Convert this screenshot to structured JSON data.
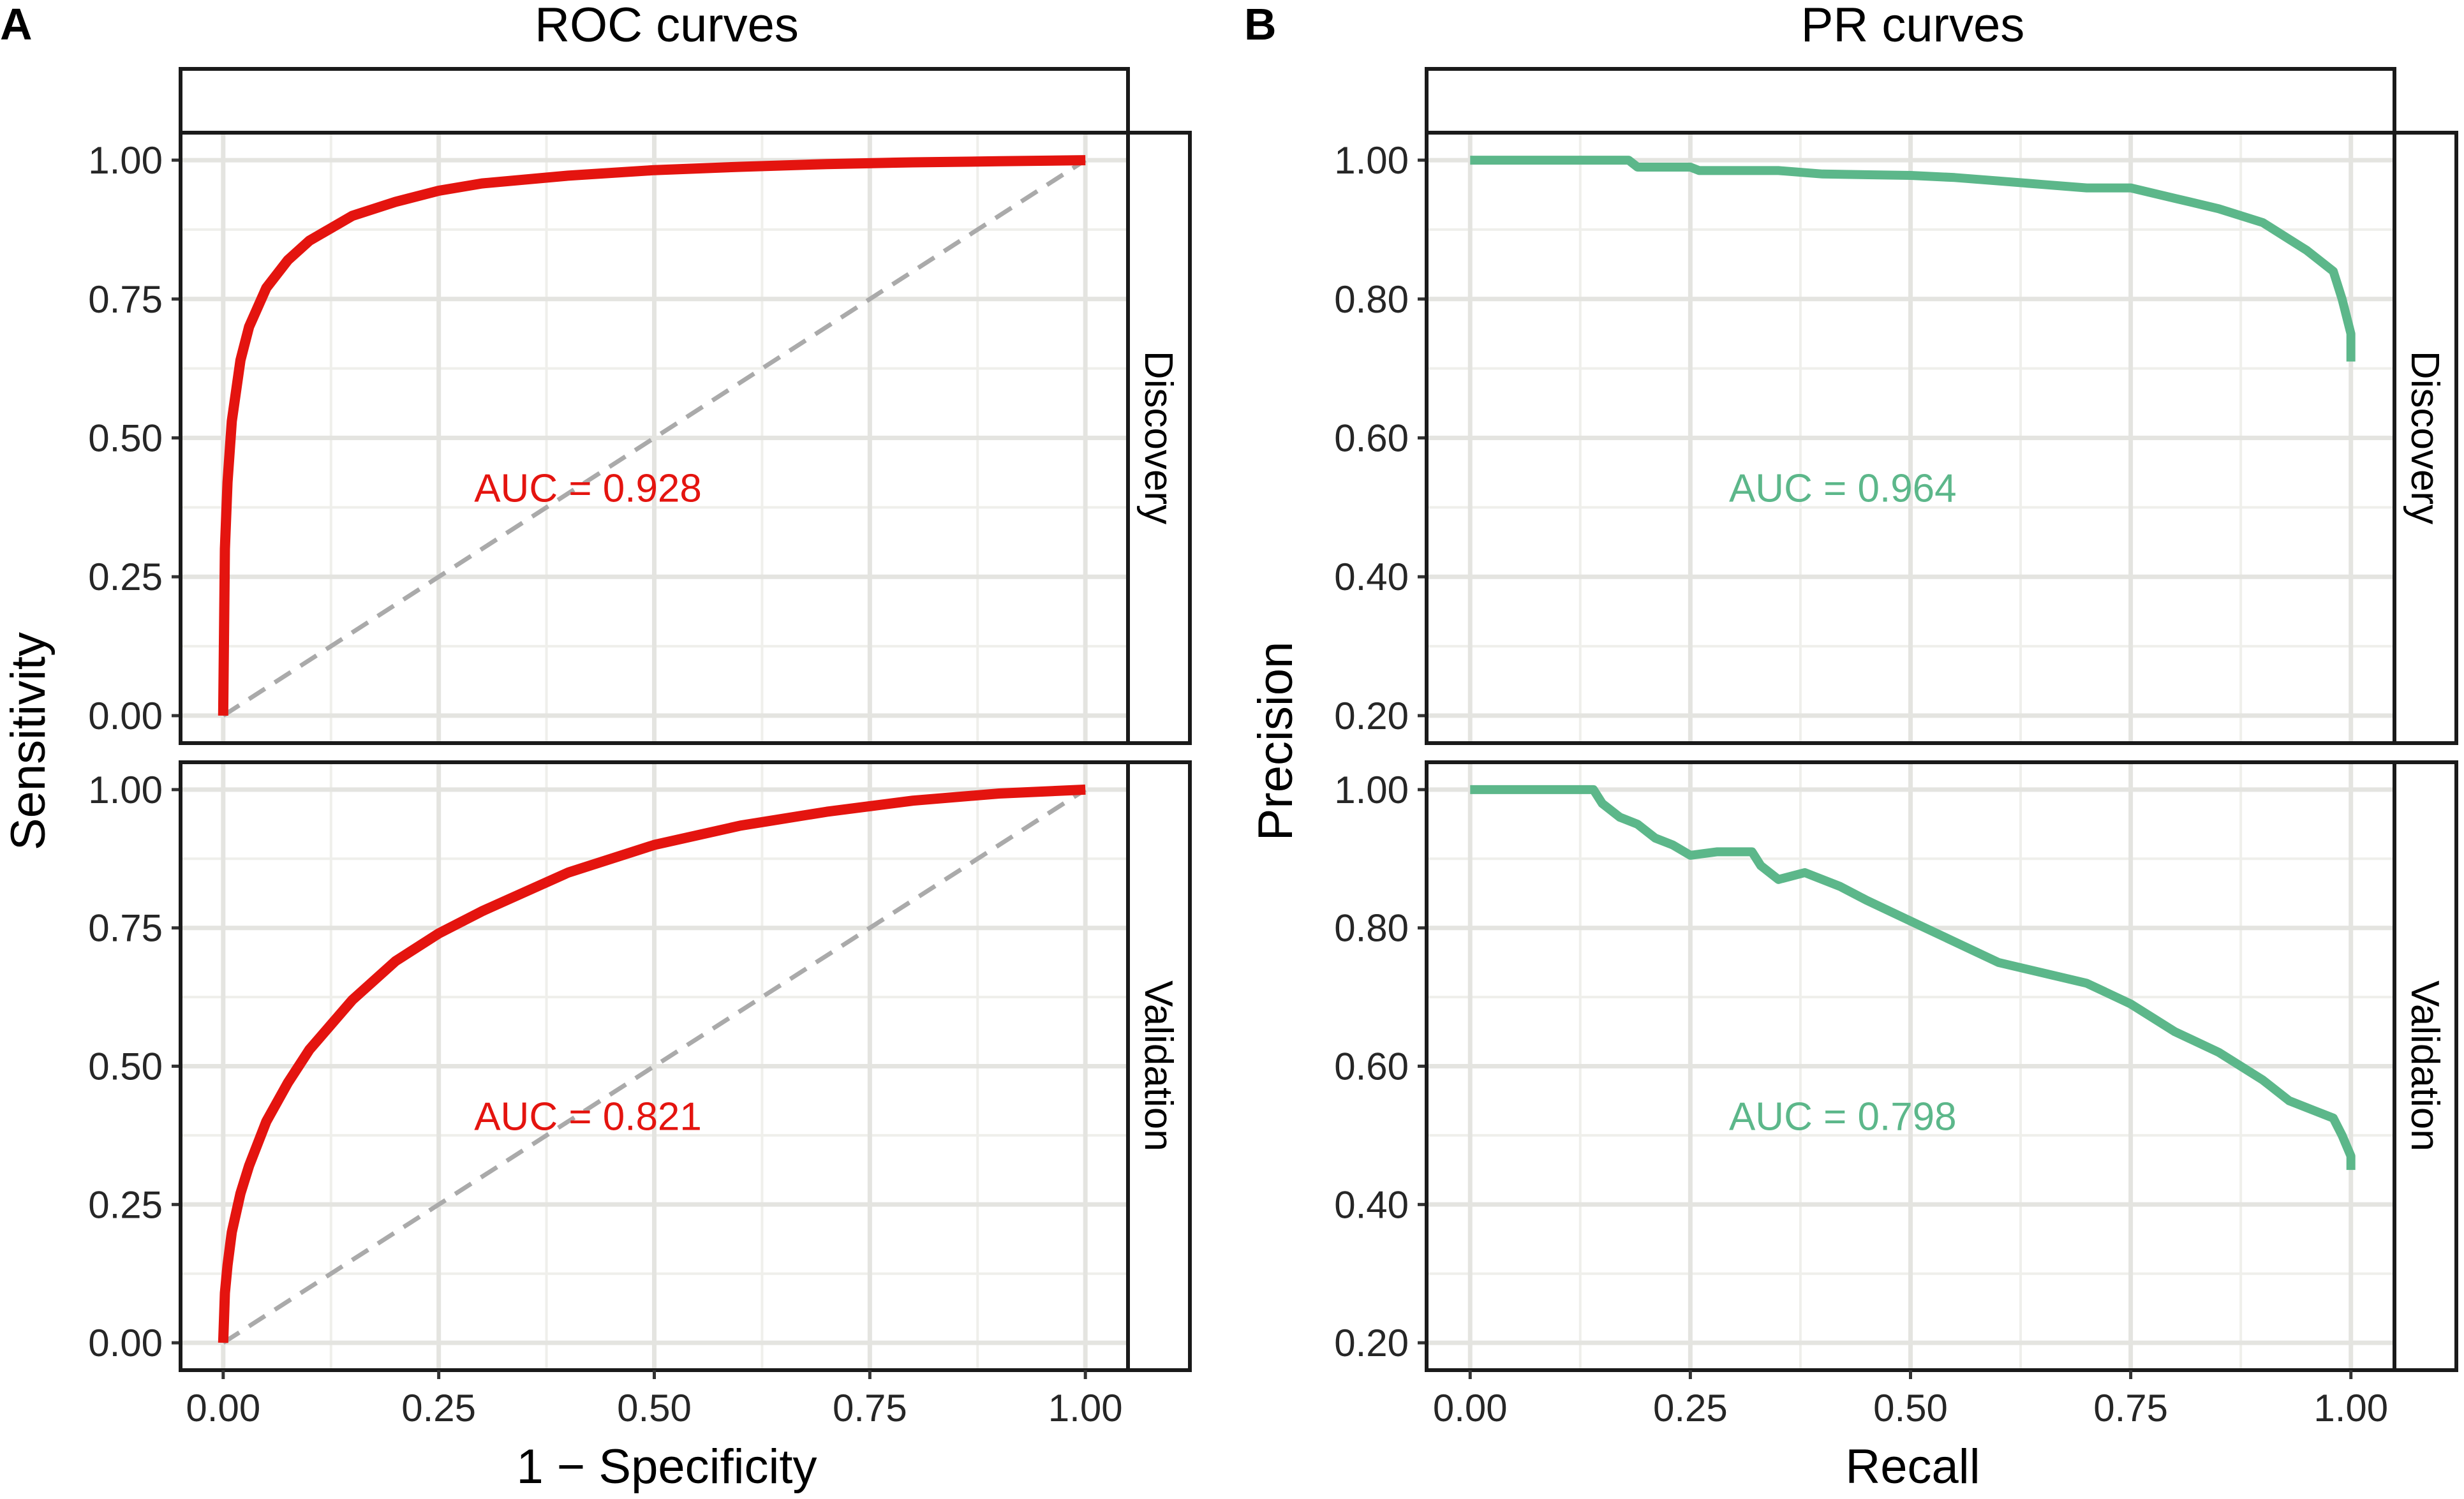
{
  "colors": {
    "roc": "#e4140f",
    "pr": "#5cb78a"
  },
  "chart_data": [
    {
      "panel": "A",
      "type": "line",
      "title": "ROC curves",
      "xlabel": "1 − Specificity",
      "ylabel": "Sensitivity",
      "xlim": [
        0,
        1
      ],
      "ylim": [
        0,
        1
      ],
      "x_ticks": [
        "0.00",
        "0.25",
        "0.50",
        "0.75",
        "1.00"
      ],
      "y_ticks": [
        "0.00",
        "0.25",
        "0.50",
        "0.75",
        "1.00"
      ],
      "facets": [
        {
          "name": "Discovery",
          "auc_label": "AUC = 0.928",
          "series": [
            {
              "name": "ROC",
              "x": [
                0,
                0.002,
                0.005,
                0.01,
                0.02,
                0.03,
                0.05,
                0.075,
                0.1,
                0.15,
                0.2,
                0.25,
                0.3,
                0.4,
                0.5,
                0.6,
                0.7,
                0.8,
                0.9,
                1.0
              ],
              "y": [
                0,
                0.3,
                0.42,
                0.53,
                0.64,
                0.7,
                0.77,
                0.82,
                0.855,
                0.9,
                0.925,
                0.945,
                0.958,
                0.972,
                0.982,
                0.988,
                0.993,
                0.996,
                0.998,
                1.0
              ]
            }
          ],
          "diagonal": [
            [
              0,
              0
            ],
            [
              1,
              1
            ]
          ]
        },
        {
          "name": "Validation",
          "auc_label": "AUC = 0.821",
          "series": [
            {
              "name": "ROC",
              "x": [
                0,
                0.002,
                0.005,
                0.01,
                0.02,
                0.03,
                0.05,
                0.075,
                0.1,
                0.15,
                0.2,
                0.25,
                0.3,
                0.4,
                0.5,
                0.6,
                0.7,
                0.8,
                0.9,
                1.0
              ],
              "y": [
                0,
                0.09,
                0.14,
                0.2,
                0.27,
                0.32,
                0.4,
                0.47,
                0.53,
                0.62,
                0.69,
                0.74,
                0.78,
                0.85,
                0.9,
                0.935,
                0.96,
                0.98,
                0.993,
                1.0
              ]
            }
          ],
          "diagonal": [
            [
              0,
              0
            ],
            [
              1,
              1
            ]
          ]
        }
      ]
    },
    {
      "panel": "B",
      "type": "line",
      "title": "PR curves",
      "xlabel": "Recall",
      "ylabel": "Precision",
      "xlim": [
        0,
        1
      ],
      "ylim": [
        0.2,
        1
      ],
      "x_ticks": [
        "0.00",
        "0.25",
        "0.50",
        "0.75",
        "1.00"
      ],
      "y_ticks": [
        "0.20",
        "0.40",
        "0.60",
        "0.80",
        "1.00"
      ],
      "facets": [
        {
          "name": "Discovery",
          "auc_label": "AUC = 0.964",
          "series": [
            {
              "name": "PR",
              "x": [
                0,
                0.18,
                0.19,
                0.25,
                0.26,
                0.35,
                0.4,
                0.5,
                0.55,
                0.6,
                0.65,
                0.7,
                0.75,
                0.8,
                0.85,
                0.9,
                0.95,
                0.98,
                0.99,
                1.0,
                1.0
              ],
              "y": [
                1.0,
                1.0,
                0.99,
                0.99,
                0.985,
                0.985,
                0.98,
                0.978,
                0.975,
                0.97,
                0.965,
                0.96,
                0.96,
                0.945,
                0.93,
                0.91,
                0.87,
                0.84,
                0.8,
                0.75,
                0.71
              ]
            }
          ]
        },
        {
          "name": "Validation",
          "auc_label": "AUC = 0.798",
          "series": [
            {
              "name": "PR",
              "x": [
                0,
                0.14,
                0.15,
                0.17,
                0.19,
                0.21,
                0.23,
                0.25,
                0.28,
                0.32,
                0.33,
                0.35,
                0.38,
                0.42,
                0.45,
                0.5,
                0.55,
                0.6,
                0.65,
                0.7,
                0.75,
                0.8,
                0.85,
                0.9,
                0.93,
                0.96,
                0.98,
                0.99,
                1.0,
                1.0
              ],
              "y": [
                1.0,
                1.0,
                0.98,
                0.96,
                0.95,
                0.93,
                0.92,
                0.905,
                0.91,
                0.91,
                0.89,
                0.87,
                0.88,
                0.86,
                0.84,
                0.81,
                0.78,
                0.75,
                0.735,
                0.72,
                0.69,
                0.65,
                0.62,
                0.58,
                0.55,
                0.535,
                0.525,
                0.5,
                0.47,
                0.45
              ]
            }
          ]
        }
      ]
    }
  ]
}
